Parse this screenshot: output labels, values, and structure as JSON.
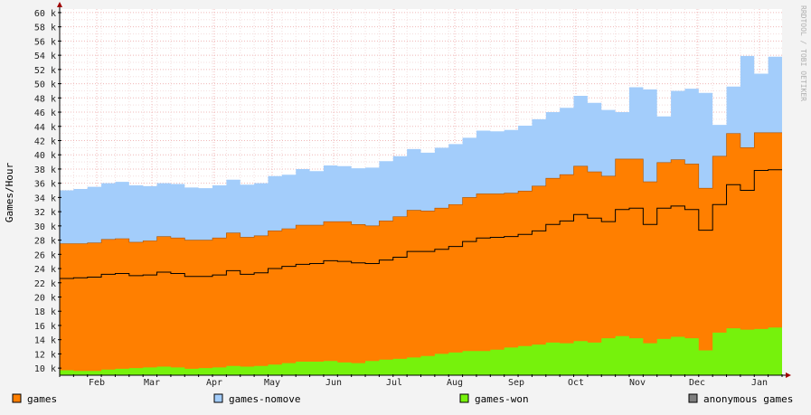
{
  "chart_data": {
    "type": "area",
    "ylabel": "Games/Hour",
    "watermark": "RRDTOOL / TOBI OETIKER",
    "ylim": [
      9000,
      60500
    ],
    "y_ticks": [
      10000,
      12000,
      14000,
      16000,
      18000,
      20000,
      22000,
      24000,
      26000,
      28000,
      30000,
      32000,
      34000,
      36000,
      38000,
      40000,
      42000,
      44000,
      46000,
      48000,
      50000,
      52000,
      54000,
      56000,
      58000,
      60000
    ],
    "y_tick_labels": [
      "10 k",
      "12 k",
      "14 k",
      "16 k",
      "18 k",
      "20 k",
      "22 k",
      "24 k",
      "26 k",
      "28 k",
      "30 k",
      "32 k",
      "34 k",
      "36 k",
      "38 k",
      "40 k",
      "42 k",
      "44 k",
      "46 k",
      "48 k",
      "50 k",
      "52 k",
      "54 k",
      "56 k",
      "58 k",
      "60 k"
    ],
    "x_labels": [
      "Feb",
      "Mar",
      "Apr",
      "May",
      "Jun",
      "Jul",
      "Aug",
      "Sep",
      "Oct",
      "Nov",
      "Dec",
      "Jan"
    ],
    "week_count": 52,
    "series": [
      {
        "name": "games-nomove",
        "color": "#a3cdfb",
        "values": [
          35000,
          35200,
          35500,
          36000,
          36200,
          35700,
          35600,
          36000,
          35900,
          35400,
          35300,
          35700,
          36500,
          35800,
          36000,
          37000,
          37200,
          38000,
          37700,
          38500,
          38400,
          38100,
          38200,
          39100,
          39800,
          40800,
          40300,
          41000,
          41500,
          42400,
          43400,
          43300,
          43500,
          44100,
          45000,
          46000,
          46600,
          48300,
          47300,
          46300,
          46000,
          49500,
          49200,
          45400,
          49000,
          49300,
          48700,
          44200,
          49600,
          53900,
          51400,
          53800
        ]
      },
      {
        "name": "games",
        "color": "#ff7f00",
        "values": [
          27500,
          27500,
          27600,
          28100,
          28200,
          27700,
          27900,
          28500,
          28300,
          28000,
          28000,
          28300,
          29000,
          28400,
          28600,
          29300,
          29600,
          30100,
          30100,
          30600,
          30600,
          30200,
          30000,
          30700,
          31300,
          32200,
          32100,
          32500,
          33000,
          34000,
          34500,
          34500,
          34600,
          34900,
          35600,
          36700,
          37200,
          38400,
          37600,
          37000,
          39400,
          39400,
          36200,
          38900,
          39300,
          38700,
          35300,
          39800,
          43000,
          41000,
          43100,
          43100
        ]
      },
      {
        "name": "games-won",
        "color": "#76f20c",
        "values": [
          9700,
          9600,
          9600,
          9800,
          9900,
          10000,
          10100,
          10200,
          10100,
          9900,
          10000,
          10100,
          10300,
          10200,
          10300,
          10500,
          10700,
          10900,
          10900,
          11000,
          10800,
          10700,
          11000,
          11200,
          11300,
          11500,
          11700,
          12000,
          12200,
          12400,
          12400,
          12600,
          12900,
          13100,
          13300,
          13600,
          13500,
          13800,
          13600,
          14200,
          14500,
          14200,
          13500,
          14100,
          14400,
          14200,
          12500,
          15000,
          15600,
          15400,
          15500,
          15700
        ]
      },
      {
        "name": "anonymous games",
        "color": "#7f7f7f",
        "values": [
          22600,
          22700,
          22800,
          23200,
          23300,
          23000,
          23100,
          23500,
          23300,
          22900,
          22900,
          23100,
          23700,
          23200,
          23400,
          24000,
          24300,
          24600,
          24700,
          25100,
          25000,
          24800,
          24700,
          25200,
          25600,
          26400,
          26400,
          26700,
          27100,
          27800,
          28300,
          28400,
          28500,
          28800,
          29300,
          30200,
          30700,
          31600,
          31100,
          30600,
          32300,
          32500,
          30200,
          32500,
          32800,
          32300,
          29400,
          33000,
          35800,
          35000,
          37800,
          37900
        ]
      }
    ],
    "legend": [
      {
        "label": "games",
        "color": "#ff7f00"
      },
      {
        "label": "games-nomove",
        "color": "#a3cdfb"
      },
      {
        "label": "games-won",
        "color": "#76f20c"
      },
      {
        "label": "anonymous games",
        "color": "#7f7f7f"
      }
    ],
    "grid": true,
    "legend_position": "bottom"
  }
}
